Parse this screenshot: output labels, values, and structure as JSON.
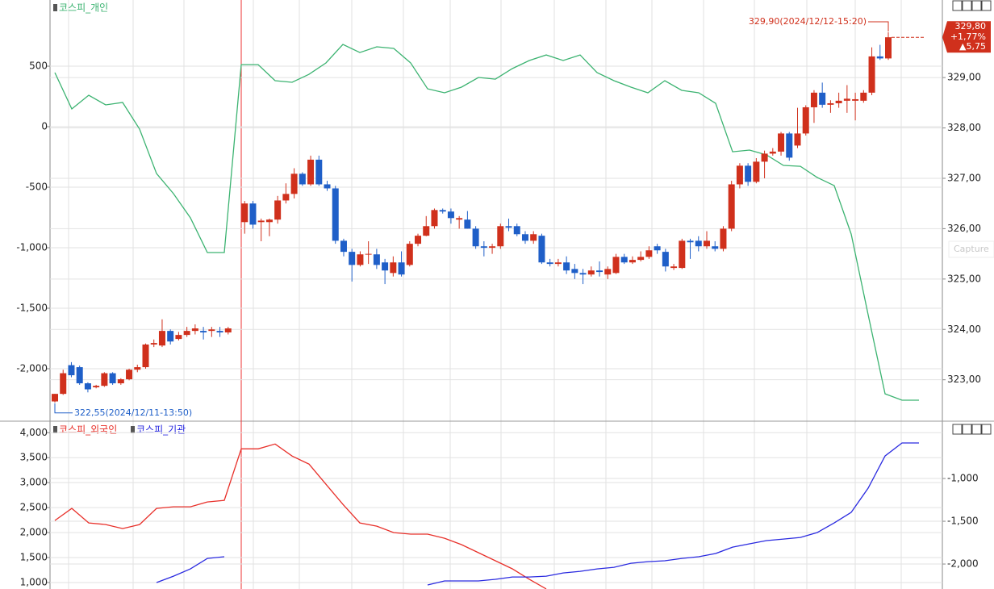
{
  "chart_data": [
    {
      "type": "candlestick",
      "series": [
        {
          "name": "코스피_개인",
          "color": "#3cb371",
          "axis": "y",
          "values": [
            447,
            147,
            260,
            180,
            200,
            -20,
            -387,
            -553,
            -753,
            -1040,
            -1040,
            513,
            513,
            380,
            367,
            433,
            527,
            680,
            613,
            660,
            647,
            527,
            313,
            280,
            327,
            407,
            393,
            480,
            547,
            593,
            547,
            593,
            447,
            380,
            327,
            280,
            380,
            300,
            280,
            193,
            -207,
            -193,
            -233,
            -320,
            -327,
            -420,
            -487,
            -887,
            -1553,
            -2207,
            -2260,
            -2260
          ]
        }
      ],
      "candles": {
        "axis": "y2",
        "up_color": "#d0301c",
        "down_color": "#1f5fc8",
        "open": [
          322.57,
          322.72,
          323.29,
          323.25,
          322.93,
          322.85,
          322.88,
          323.13,
          322.93,
          323.01,
          323.2,
          323.25,
          323.7,
          323.68,
          323.97,
          323.81,
          323.89,
          323.97,
          323.97,
          323.97,
          323.97,
          323.94,
          326.13,
          326.5,
          326.13,
          326.13,
          326.18,
          326.56,
          326.69,
          327.09,
          326.88,
          327.37,
          326.88,
          326.8,
          325.76,
          325.54,
          325.28,
          325.49,
          325.49,
          325.33,
          325.12,
          325.33,
          325.28,
          325.7,
          325.86,
          326.05,
          326.37,
          326.34,
          326.18,
          326.18,
          326.0,
          325.65,
          325.62,
          325.65,
          326.05,
          326.05,
          325.89,
          325.76,
          325.86,
          325.33,
          325.3,
          325.33,
          325.2,
          325.12,
          325.09,
          325.17,
          325.09,
          325.12,
          325.44,
          325.33,
          325.38,
          325.44,
          325.65,
          325.54,
          325.22,
          325.22,
          325.76,
          325.76,
          325.65,
          325.65,
          325.6,
          326.0,
          326.88,
          327.25,
          326.93,
          327.33,
          327.49,
          327.53,
          327.89,
          327.65,
          327.89,
          328.41,
          328.7,
          328.46,
          328.49,
          328.54,
          328.54,
          328.54,
          328.7,
          329.42,
          329.38
        ],
        "high": [
          322.72,
          323.2,
          323.35,
          323.28,
          322.95,
          322.9,
          323.15,
          323.15,
          323.03,
          323.22,
          323.3,
          323.72,
          323.8,
          324.2,
          324.0,
          323.95,
          324.05,
          324.1,
          324.05,
          324.05,
          324.05,
          324.05,
          326.55,
          326.55,
          326.2,
          326.2,
          326.65,
          326.9,
          327.2,
          327.12,
          327.45,
          327.45,
          326.95,
          326.85,
          325.8,
          325.6,
          325.55,
          325.75,
          325.6,
          325.4,
          325.45,
          325.55,
          325.75,
          325.9,
          326.25,
          326.4,
          326.4,
          326.4,
          326.25,
          326.35,
          326.05,
          325.75,
          325.7,
          326.1,
          326.2,
          326.1,
          325.95,
          325.95,
          325.9,
          325.4,
          325.4,
          325.45,
          325.3,
          325.2,
          325.25,
          325.35,
          325.25,
          325.5,
          325.5,
          325.45,
          325.55,
          325.65,
          325.7,
          325.6,
          325.3,
          325.8,
          325.8,
          325.85,
          325.95,
          325.75,
          326.05,
          326.95,
          327.3,
          327.3,
          327.4,
          327.55,
          327.6,
          327.92,
          327.92,
          328.4,
          328.45,
          328.75,
          328.9,
          328.55,
          328.7,
          328.85,
          328.7,
          328.75,
          329.6,
          329.65,
          329.9
        ],
        "low": [
          322.55,
          322.7,
          323.05,
          322.9,
          322.75,
          322.83,
          322.86,
          322.9,
          322.9,
          322.99,
          323.15,
          323.22,
          323.65,
          323.65,
          323.7,
          323.78,
          323.85,
          323.9,
          323.8,
          323.85,
          323.85,
          323.9,
          325.9,
          326.0,
          325.75,
          325.85,
          326.1,
          326.5,
          326.6,
          326.85,
          326.85,
          326.85,
          326.75,
          325.7,
          325.45,
          324.95,
          325.25,
          325.3,
          325.2,
          324.9,
          325.05,
          325.05,
          325.25,
          325.65,
          325.85,
          326.0,
          326.3,
          326.1,
          326.0,
          326.0,
          325.6,
          325.45,
          325.5,
          325.6,
          325.95,
          325.85,
          325.7,
          325.7,
          325.3,
          325.25,
          325.25,
          325.1,
          325.0,
          324.9,
          325.05,
          325.05,
          325.0,
          325.1,
          325.3,
          325.3,
          325.35,
          325.4,
          325.5,
          325.15,
          325.18,
          325.2,
          325.4,
          325.55,
          325.6,
          325.55,
          325.55,
          325.95,
          326.8,
          326.85,
          326.9,
          327.0,
          327.45,
          327.45,
          327.35,
          327.6,
          327.85,
          328.1,
          328.4,
          328.3,
          328.4,
          328.3,
          328.15,
          328.5,
          328.65,
          329.35,
          329.35
        ],
        "close": [
          322.72,
          323.13,
          323.09,
          322.93,
          322.81,
          322.88,
          323.13,
          322.93,
          323.01,
          323.2,
          323.25,
          323.7,
          323.73,
          323.97,
          323.76,
          323.89,
          323.97,
          324.02,
          323.94,
          324.0,
          323.94,
          324.02,
          326.5,
          326.08,
          326.16,
          326.18,
          326.56,
          326.69,
          327.09,
          326.88,
          327.37,
          326.88,
          326.8,
          325.76,
          325.54,
          325.28,
          325.49,
          325.5,
          325.28,
          325.17,
          325.33,
          325.09,
          325.7,
          325.86,
          326.05,
          326.37,
          326.34,
          326.21,
          326.21,
          326.0,
          325.65,
          325.62,
          325.65,
          326.05,
          326.02,
          325.89,
          325.76,
          325.89,
          325.33,
          325.3,
          325.33,
          325.17,
          325.12,
          325.09,
          325.17,
          325.14,
          325.2,
          325.44,
          325.33,
          325.38,
          325.44,
          325.57,
          325.57,
          325.25,
          325.25,
          325.76,
          325.73,
          325.65,
          325.76,
          325.6,
          326.0,
          326.88,
          327.25,
          326.93,
          327.33,
          327.49,
          327.53,
          327.89,
          327.41,
          327.89,
          328.41,
          328.7,
          328.46,
          328.49,
          328.54,
          328.58,
          328.57,
          328.7,
          329.42,
          329.38,
          329.8
        ]
      },
      "high_label": "329,90(2024/12/12-15:20)",
      "low_label": "322,55(2024/12/11-13:50)",
      "price_box": {
        "price": "329,80",
        "change_pct": "+1,77%",
        "change": "▲5,75"
      },
      "overlay_text": "Capture",
      "ylim": [
        -2420,
        1047
      ],
      "yticks": [
        500,
        0,
        -500,
        {
          "value": -1000,
          "label": "-1,000"
        },
        {
          "value": -1500,
          "label": "-1,500"
        },
        {
          "value": -2000,
          "label": "-2,000"
        }
      ],
      "y2lim": [
        322.21,
        330.54
      ],
      "y2ticks": [
        {
          "value": 329,
          "label": "329,00"
        },
        {
          "value": 328,
          "label": "328,00"
        },
        {
          "value": 327,
          "label": "327,00"
        },
        {
          "value": 326,
          "label": "326,00"
        },
        {
          "value": 325,
          "label": "325,00"
        },
        {
          "value": 324,
          "label": "324,00"
        },
        {
          "value": 323,
          "label": "323,00"
        }
      ],
      "grid": true
    },
    {
      "type": "line",
      "series": [
        {
          "name": "코스피_외국인",
          "color": "#e8302a",
          "axis": "y",
          "values": [
            2242,
            2484,
            2194,
            2161,
            2081,
            2161,
            2484,
            2516,
            2516,
            2613,
            2645,
            3677,
            3677,
            3774,
            3532,
            3371,
            2968,
            2565,
            2194,
            2129,
            2000,
            1968,
            1968,
            1887,
            1758,
            1597,
            1435,
            1274,
            1065,
            871,
            null,
            null,
            null,
            null,
            null,
            null,
            null,
            null,
            null,
            null,
            null,
            null,
            null,
            null,
            null,
            null,
            null,
            null,
            null,
            null,
            null,
            null
          ]
        },
        {
          "name": "코스피_기관",
          "color": "#2a2ae0",
          "axis": "y2",
          "values": [
            null,
            null,
            null,
            null,
            null,
            null,
            -2217,
            -2142,
            -2057,
            -1934,
            -1915,
            null,
            null,
            null,
            null,
            null,
            null,
            null,
            null,
            null,
            null,
            null,
            -2245,
            -2198,
            -2198,
            -2198,
            -2179,
            -2151,
            -2151,
            -2142,
            -2104,
            -2085,
            -2057,
            -2038,
            -1991,
            -1972,
            -1962,
            -1934,
            -1915,
            -1877,
            -1802,
            -1764,
            -1726,
            -1708,
            -1689,
            -1632,
            -1519,
            -1396,
            -1113,
            -736,
            -585,
            -585
          ]
        }
      ],
      "ylim": [
        870,
        4150
      ],
      "yticks": [
        {
          "value": 4000,
          "label": "4,000"
        },
        {
          "value": 3500,
          "label": "3,500"
        },
        {
          "value": 3000,
          "label": "3,000"
        },
        {
          "value": 2500,
          "label": "2,500"
        },
        {
          "value": 2000,
          "label": "2,000"
        },
        {
          "value": 1500,
          "label": "1,500"
        },
        {
          "value": 1000,
          "label": "1,000"
        }
      ],
      "y2lim": [
        -2292,
        -377
      ],
      "y2ticks": [
        {
          "value": -1000,
          "label": "-1,000"
        },
        {
          "value": -1500,
          "label": "-1,500"
        },
        {
          "value": -2000,
          "label": "-2,000"
        }
      ],
      "grid": true
    }
  ]
}
